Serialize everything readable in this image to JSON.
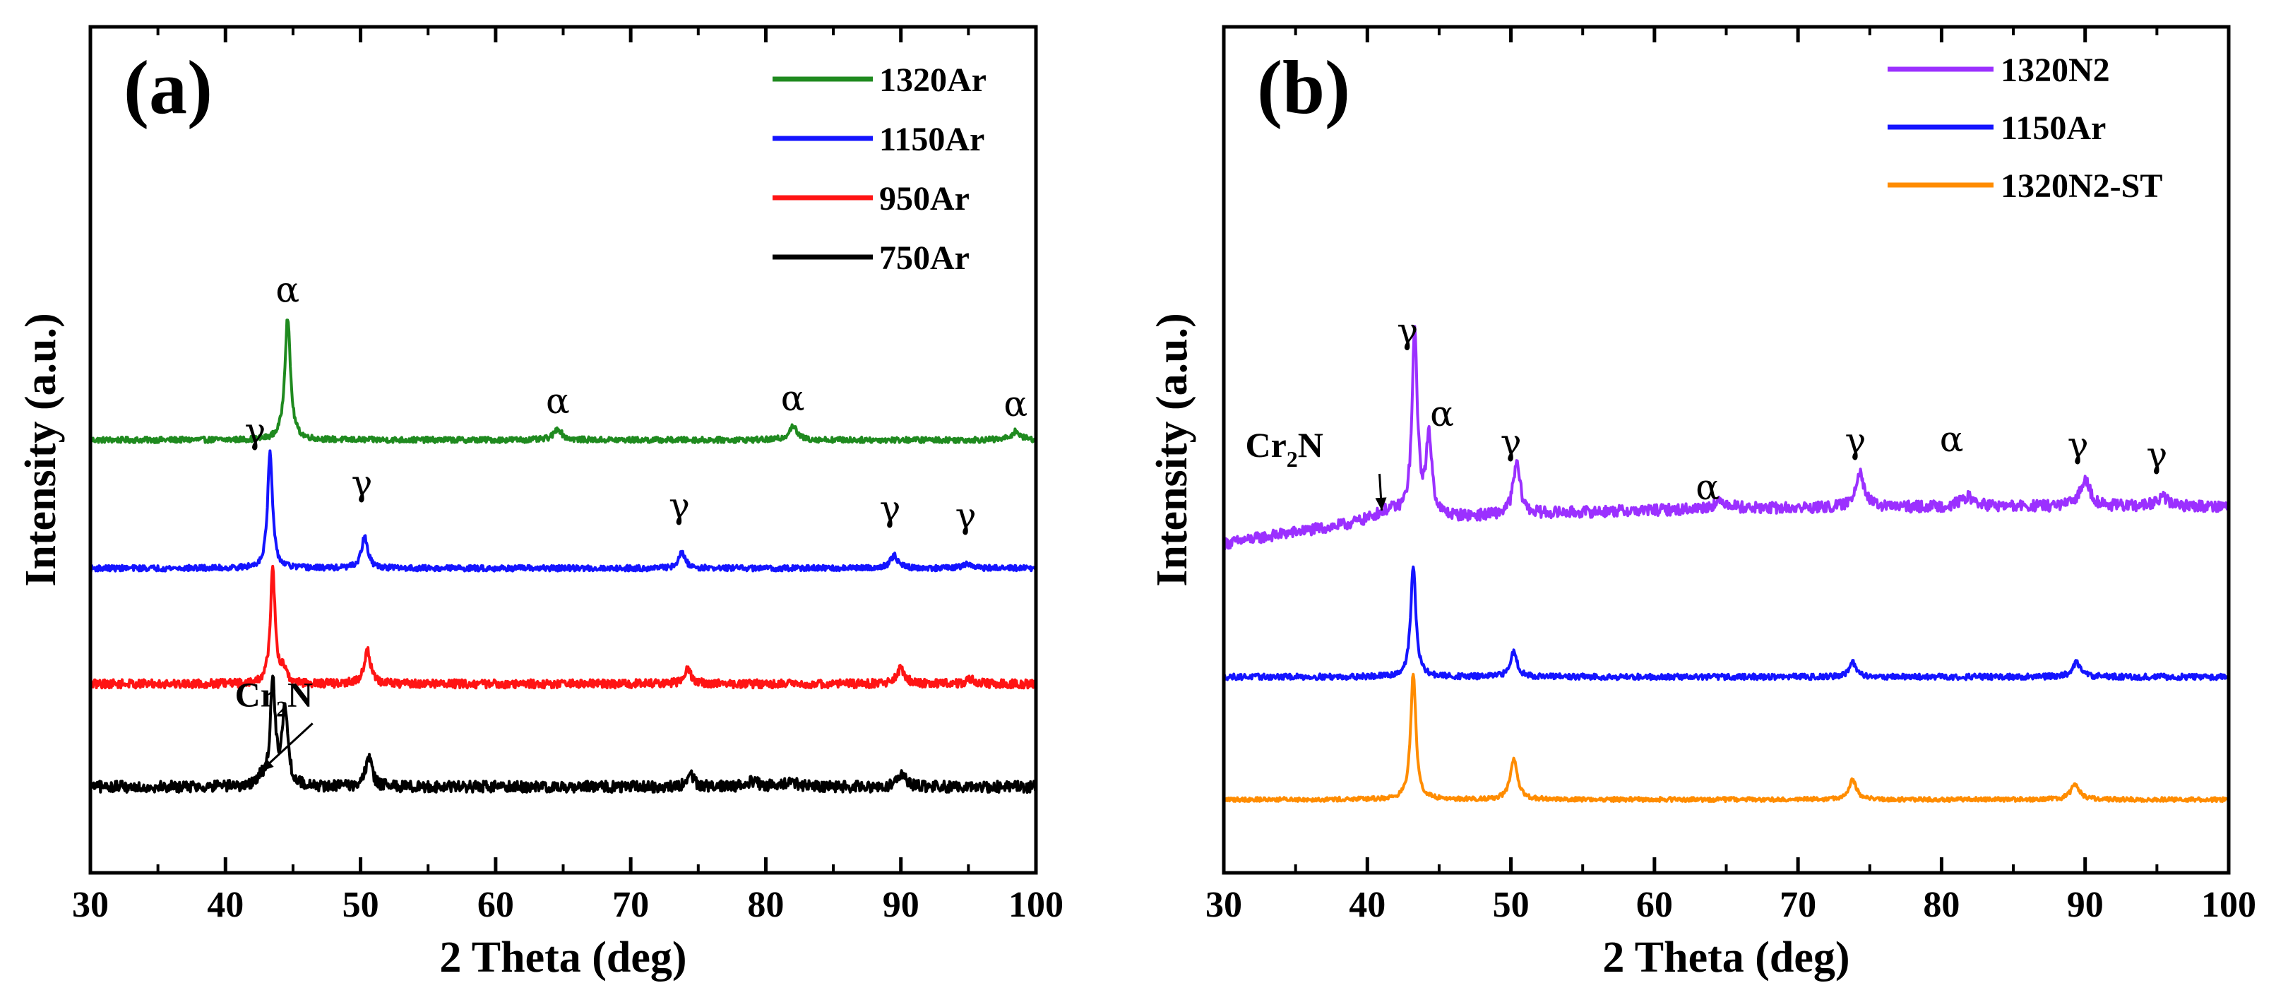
{
  "chart_data": [
    {
      "type": "line",
      "panel_label": "(a)",
      "xlabel": "2 Theta (deg)",
      "ylabel": "Intensity (a.u.)",
      "xlim": [
        30,
        100
      ],
      "xticks": [
        "30",
        "40",
        "50",
        "60",
        "70",
        "80",
        "90",
        "100"
      ],
      "ylim": [
        0,
        60
      ],
      "legend_position": "top-right",
      "series": [
        {
          "name": "1320Ar",
          "color": "#1f8a1f",
          "baseline": 30.7,
          "noise": 0.2,
          "peaks": [
            [
              44.6,
              8.7,
              0.25
            ],
            [
              64.6,
              0.8,
              0.35
            ],
            [
              82.0,
              1.0,
              0.35
            ],
            [
              98.5,
              0.6,
              0.4
            ]
          ]
        },
        {
          "name": "1150Ar",
          "color": "#1414ff",
          "baseline": 21.6,
          "noise": 0.2,
          "peaks": [
            [
              43.3,
              8.2,
              0.22
            ],
            [
              50.3,
              2.2,
              0.28
            ],
            [
              73.8,
              1.1,
              0.3
            ],
            [
              89.5,
              0.9,
              0.35
            ],
            [
              95.0,
              0.3,
              0.4
            ]
          ]
        },
        {
          "name": "950Ar",
          "color": "#ff1414",
          "baseline": 13.4,
          "noise": 0.3,
          "peaks": [
            [
              43.5,
              8.0,
              0.22
            ],
            [
              44.3,
              0.9,
              0.25
            ],
            [
              50.5,
              2.4,
              0.28
            ],
            [
              74.2,
              1.1,
              0.3
            ],
            [
              90.0,
              1.1,
              0.35
            ],
            [
              95.2,
              0.3,
              0.4
            ]
          ]
        },
        {
          "name": "750Ar",
          "color": "#000000",
          "baseline": 6.1,
          "noise": 0.4,
          "peaks": [
            [
              42.6,
              0.6,
              0.2
            ],
            [
              43.5,
              7.5,
              0.22
            ],
            [
              44.4,
              5.5,
              0.25
            ],
            [
              50.6,
              2.1,
              0.28
            ],
            [
              74.4,
              0.9,
              0.3
            ],
            [
              79.0,
              0.4,
              0.5
            ],
            [
              81.8,
              0.4,
              0.5
            ],
            [
              90.1,
              0.9,
              0.35
            ]
          ]
        }
      ],
      "annotations": [
        {
          "text": "α",
          "x": 44.6,
          "y": 40.5
        },
        {
          "text": "α",
          "x": 64.6,
          "y": 32.6
        },
        {
          "text": "α",
          "x": 82.0,
          "y": 32.8
        },
        {
          "text": "α",
          "x": 98.5,
          "y": 32.4
        },
        {
          "text": "γ",
          "x": 42.2,
          "y": 30.5
        },
        {
          "text": "γ",
          "x": 50.1,
          "y": 26.8
        },
        {
          "text": "γ",
          "x": 73.6,
          "y": 25.2
        },
        {
          "text": "γ",
          "x": 89.2,
          "y": 25.0
        },
        {
          "text": "γ",
          "x": 94.8,
          "y": 24.5
        }
      ],
      "cr2n_label": {
        "main": "Cr",
        "sub": "2",
        "rest": "N",
        "x": 40.7,
        "y": 11.8,
        "arrow_to": [
          42.6,
          7.2
        ]
      }
    },
    {
      "type": "line",
      "panel_label": "(b)",
      "xlabel": "2 Theta (deg)",
      "ylabel": "Intensity (a.u.)",
      "xlim": [
        30,
        100
      ],
      "xticks": [
        "30",
        "40",
        "50",
        "60",
        "70",
        "80",
        "90",
        "100"
      ],
      "ylim": [
        0,
        60
      ],
      "legend_position": "top-right",
      "series": [
        {
          "name": "1320N2",
          "color": "#9b30ff",
          "baseline": 23.3,
          "baseline_end": 26.0,
          "noise": 0.4,
          "peaks": [
            [
              41.5,
              0.8,
              1.5
            ],
            [
              43.3,
              13.0,
              0.22
            ],
            [
              44.3,
              5.5,
              0.25
            ],
            [
              50.4,
              3.6,
              0.3
            ],
            [
              64.7,
              0.5,
              0.8
            ],
            [
              74.3,
              2.6,
              0.35
            ],
            [
              81.8,
              0.7,
              0.6
            ],
            [
              90.0,
              2.0,
              0.4
            ],
            [
              95.4,
              0.6,
              0.5
            ]
          ]
        },
        {
          "name": "1150Ar",
          "color": "#1414ff",
          "baseline": 13.9,
          "noise": 0.2,
          "peaks": [
            [
              43.2,
              7.8,
              0.22
            ],
            [
              50.2,
              1.8,
              0.28
            ],
            [
              73.8,
              1.0,
              0.3
            ],
            [
              89.4,
              1.0,
              0.35
            ]
          ]
        },
        {
          "name": "1320N2-ST",
          "color": "#ff8c00",
          "baseline": 5.2,
          "noise": 0.15,
          "peaks": [
            [
              43.2,
              9.0,
              0.22
            ],
            [
              50.2,
              2.8,
              0.3
            ],
            [
              73.8,
              1.4,
              0.3
            ],
            [
              89.3,
              1.1,
              0.35
            ]
          ]
        }
      ],
      "annotations": [
        {
          "text": "γ",
          "x": 42.8,
          "y": 37.6
        },
        {
          "text": "α",
          "x": 45.2,
          "y": 31.7
        },
        {
          "text": "γ",
          "x": 50.0,
          "y": 29.7
        },
        {
          "text": "α",
          "x": 63.7,
          "y": 26.5
        },
        {
          "text": "γ",
          "x": 74.0,
          "y": 29.8
        },
        {
          "text": "α",
          "x": 80.7,
          "y": 29.9
        },
        {
          "text": "γ",
          "x": 89.5,
          "y": 29.5
        },
        {
          "text": "γ",
          "x": 95.0,
          "y": 28.8
        }
      ],
      "cr2n_label": {
        "main": "Cr",
        "sub": "2",
        "rest": "N",
        "x": 31.5,
        "y": 29.5,
        "arrow_to": [
          41.0,
          25.7
        ]
      }
    }
  ]
}
